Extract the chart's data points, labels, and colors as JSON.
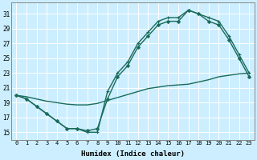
{
  "xlabel": "Humidex (Indice chaleur)",
  "bg_color": "#cceeff",
  "grid_color": "#ffffff",
  "line_color": "#1a6b5a",
  "xlim": [
    -0.5,
    23.5
  ],
  "ylim": [
    14.0,
    32.5
  ],
  "xticks": [
    0,
    1,
    2,
    3,
    4,
    5,
    6,
    7,
    8,
    9,
    10,
    11,
    12,
    13,
    14,
    15,
    16,
    17,
    18,
    19,
    20,
    21,
    22,
    23
  ],
  "yticks": [
    15,
    17,
    19,
    21,
    23,
    25,
    27,
    29,
    31
  ],
  "series": [
    {
      "x": [
        0,
        1,
        2,
        3,
        4,
        5,
        6,
        7,
        8,
        9,
        10,
        11,
        12,
        13,
        14,
        15,
        16,
        17,
        18,
        19,
        20,
        21,
        22,
        23
      ],
      "y": [
        20.0,
        19.5,
        18.5,
        17.5,
        16.5,
        15.5,
        15.5,
        15.0,
        15.0,
        20.5,
        23.0,
        24.5,
        27.0,
        28.5,
        30.0,
        30.5,
        30.5,
        31.5,
        31.0,
        30.5,
        30.0,
        28.0,
        25.5,
        23.0
      ],
      "marker": "+",
      "ms": 3.5,
      "lw": 1.0
    },
    {
      "x": [
        0,
        1,
        2,
        3,
        4,
        5,
        6,
        7,
        8,
        9,
        10,
        11,
        12,
        13,
        14,
        15,
        16,
        17,
        18,
        19,
        20,
        21,
        22,
        23
      ],
      "y": [
        20.0,
        19.5,
        18.5,
        17.5,
        16.5,
        15.5,
        15.5,
        15.2,
        15.5,
        19.5,
        22.5,
        24.0,
        26.5,
        28.0,
        29.5,
        30.0,
        30.0,
        31.5,
        31.0,
        30.0,
        29.5,
        27.5,
        25.0,
        22.5
      ],
      "marker": "D",
      "ms": 2.0,
      "lw": 1.0
    },
    {
      "x": [
        0,
        1,
        2,
        3,
        4,
        5,
        6,
        7,
        8,
        9,
        10,
        11,
        12,
        13,
        14,
        15,
        16,
        17,
        18,
        19,
        20,
        21,
        22,
        23
      ],
      "y": [
        20.0,
        19.8,
        19.5,
        19.2,
        19.0,
        18.8,
        18.7,
        18.7,
        18.9,
        19.3,
        19.7,
        20.1,
        20.5,
        20.9,
        21.1,
        21.3,
        21.4,
        21.5,
        21.8,
        22.1,
        22.5,
        22.7,
        22.9,
        23.0
      ],
      "marker": null,
      "ms": 0,
      "lw": 1.0
    }
  ]
}
